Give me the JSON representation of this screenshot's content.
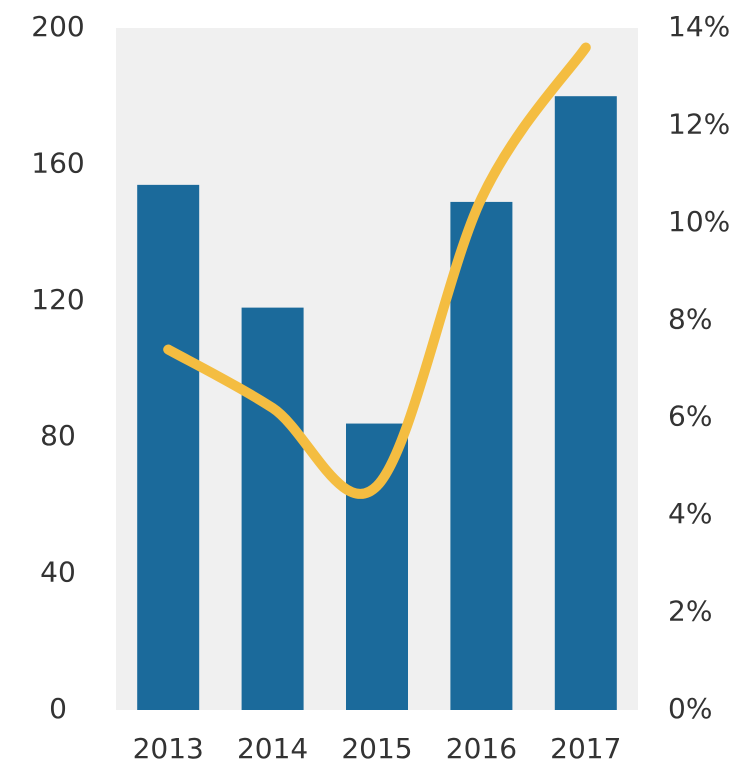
{
  "chart_data": {
    "type": "bar-line",
    "categories": [
      "2013",
      "2014",
      "2015",
      "2016",
      "2017"
    ],
    "series": [
      {
        "type": "bar",
        "color": "#1b6a9b",
        "values": [
          154,
          118,
          84,
          149,
          180
        ]
      },
      {
        "type": "line",
        "color": "#f4bd41",
        "axis": "y2",
        "values": [
          7.4,
          6.2,
          4.6,
          10.5,
          13.6
        ]
      }
    ],
    "ylim": [
      0,
      200
    ],
    "yticks": [
      0,
      40,
      80,
      120,
      160,
      200
    ],
    "y2lim": [
      0,
      14
    ],
    "y2ticks": [
      {
        "value": 0,
        "label": "0%"
      },
      {
        "value": 2,
        "label": "2%"
      },
      {
        "value": 4,
        "label": "4%"
      },
      {
        "value": 6,
        "label": "6%"
      },
      {
        "value": 8,
        "label": "8%"
      },
      {
        "value": 10,
        "label": "10%"
      },
      {
        "value": 12,
        "label": "12%"
      },
      {
        "value": 14,
        "label": "14%"
      }
    ],
    "background": "#f0f0f0"
  }
}
